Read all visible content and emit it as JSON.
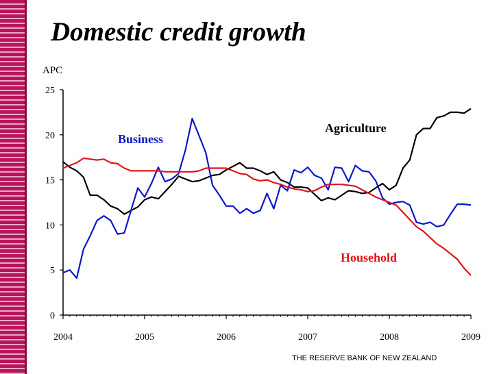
{
  "title": "Domestic credit growth",
  "footer": "THE RESERVE BANK OF NEW ZEALAND",
  "chart_data": {
    "type": "line",
    "title": "Domestic credit growth",
    "ylabel": "APC",
    "xlabel": "",
    "ylim": [
      0,
      25
    ],
    "yticks": [
      0,
      5,
      10,
      15,
      20,
      25
    ],
    "xlim": [
      2004,
      2009
    ],
    "xticks": [
      "2004",
      "2005",
      "2006",
      "2007",
      "2008",
      "2009"
    ],
    "grid": false,
    "series": [
      {
        "name": "Agriculture",
        "color": "#000000",
        "x": [
          2004.0,
          2004.083,
          2004.167,
          2004.25,
          2004.333,
          2004.417,
          2004.5,
          2004.583,
          2004.667,
          2004.75,
          2004.833,
          2004.917,
          2005.0,
          2005.083,
          2005.167,
          2005.25,
          2005.333,
          2005.417,
          2005.5,
          2005.583,
          2005.667,
          2005.75,
          2005.833,
          2005.917,
          2006.0,
          2006.083,
          2006.167,
          2006.25,
          2006.333,
          2006.417,
          2006.5,
          2006.583,
          2006.667,
          2006.75,
          2006.833,
          2006.917,
          2007.0,
          2007.083,
          2007.167,
          2007.25,
          2007.333,
          2007.417,
          2007.5,
          2007.583,
          2007.667,
          2007.75,
          2007.833,
          2007.917,
          2008.0,
          2008.083,
          2008.167,
          2008.25,
          2008.333,
          2008.417,
          2008.5,
          2008.583,
          2008.667,
          2008.75,
          2008.833,
          2008.917,
          2009.0
        ],
        "values": [
          17.0,
          16.4,
          16.0,
          15.3,
          13.3,
          13.3,
          12.8,
          12.1,
          11.8,
          11.2,
          11.6,
          12.0,
          12.8,
          13.1,
          12.9,
          13.7,
          14.5,
          15.4,
          15.1,
          14.8,
          14.9,
          15.2,
          15.5,
          15.6,
          16.1,
          16.5,
          16.9,
          16.3,
          16.3,
          16.0,
          15.6,
          15.9,
          15.0,
          14.7,
          14.2,
          14.2,
          14.1,
          13.4,
          12.7,
          13.0,
          12.8,
          13.3,
          13.8,
          13.7,
          13.5,
          13.6,
          14.1,
          14.6,
          13.9,
          14.4,
          16.3,
          17.2,
          20.0,
          20.7,
          20.7,
          21.9,
          22.1,
          22.5,
          22.5,
          22.4,
          22.9
        ]
      },
      {
        "name": "Business",
        "color": "#0c17c8",
        "x": [
          2004.0,
          2004.083,
          2004.167,
          2004.25,
          2004.333,
          2004.417,
          2004.5,
          2004.583,
          2004.667,
          2004.75,
          2004.833,
          2004.917,
          2005.0,
          2005.083,
          2005.167,
          2005.25,
          2005.333,
          2005.417,
          2005.5,
          2005.583,
          2005.667,
          2005.75,
          2005.833,
          2005.917,
          2006.0,
          2006.083,
          2006.167,
          2006.25,
          2006.333,
          2006.417,
          2006.5,
          2006.583,
          2006.667,
          2006.75,
          2006.833,
          2006.917,
          2007.0,
          2007.083,
          2007.167,
          2007.25,
          2007.333,
          2007.417,
          2007.5,
          2007.583,
          2007.667,
          2007.75,
          2007.833,
          2007.917,
          2008.0,
          2008.083,
          2008.167,
          2008.25,
          2008.333,
          2008.417,
          2008.5,
          2008.583,
          2008.667,
          2008.75,
          2008.833,
          2008.917,
          2009.0
        ],
        "values": [
          4.7,
          5.0,
          4.1,
          7.3,
          8.8,
          10.5,
          11.0,
          10.5,
          9.0,
          9.1,
          11.6,
          14.1,
          13.1,
          14.6,
          16.4,
          14.8,
          15.1,
          15.7,
          18.3,
          21.8,
          19.9,
          18.0,
          14.4,
          13.3,
          12.1,
          12.1,
          11.3,
          11.8,
          11.3,
          11.6,
          13.5,
          11.8,
          14.4,
          13.8,
          16.1,
          15.8,
          16.4,
          15.5,
          15.2,
          13.9,
          16.4,
          16.3,
          14.8,
          16.6,
          16.0,
          15.9,
          14.9,
          13.0,
          12.3,
          12.5,
          12.6,
          12.2,
          10.3,
          10.1,
          10.3,
          9.8,
          10.0,
          11.2,
          12.3,
          12.3,
          12.2
        ]
      },
      {
        "name": "Household",
        "color": "#e0141a",
        "x": [
          2004.0,
          2004.083,
          2004.167,
          2004.25,
          2004.333,
          2004.417,
          2004.5,
          2004.583,
          2004.667,
          2004.75,
          2004.833,
          2004.917,
          2005.0,
          2005.083,
          2005.167,
          2005.25,
          2005.333,
          2005.417,
          2005.5,
          2005.583,
          2005.667,
          2005.75,
          2005.833,
          2005.917,
          2006.0,
          2006.083,
          2006.167,
          2006.25,
          2006.333,
          2006.417,
          2006.5,
          2006.583,
          2006.667,
          2006.75,
          2006.833,
          2006.917,
          2007.0,
          2007.083,
          2007.167,
          2007.25,
          2007.333,
          2007.417,
          2007.5,
          2007.583,
          2007.667,
          2007.75,
          2007.833,
          2007.917,
          2008.0,
          2008.083,
          2008.167,
          2008.25,
          2008.333,
          2008.417,
          2008.5,
          2008.583,
          2008.667,
          2008.75,
          2008.833,
          2008.917,
          2009.0
        ],
        "values": [
          16.3,
          16.6,
          16.9,
          17.4,
          17.3,
          17.2,
          17.3,
          16.9,
          16.8,
          16.3,
          16.0,
          16.0,
          16.0,
          16.0,
          16.0,
          15.9,
          15.9,
          15.9,
          15.9,
          15.9,
          16.0,
          16.3,
          16.3,
          16.3,
          16.3,
          16.0,
          15.7,
          15.6,
          15.1,
          14.9,
          15.0,
          14.7,
          14.5,
          14.2,
          14.0,
          13.9,
          13.7,
          13.8,
          14.2,
          14.5,
          14.5,
          14.5,
          14.4,
          14.3,
          13.9,
          13.5,
          13.1,
          12.8,
          12.5,
          12.2,
          11.4,
          10.6,
          9.8,
          9.3,
          8.6,
          7.9,
          7.4,
          6.8,
          6.2,
          5.2,
          4.4
        ]
      }
    ],
    "annotations": [
      {
        "text": "Business",
        "series": "Business",
        "color": "#0c17c8"
      },
      {
        "text": "Agriculture",
        "series": "Agriculture",
        "color": "#000000"
      },
      {
        "text": "Household",
        "series": "Household",
        "color": "#e0141a"
      }
    ]
  }
}
